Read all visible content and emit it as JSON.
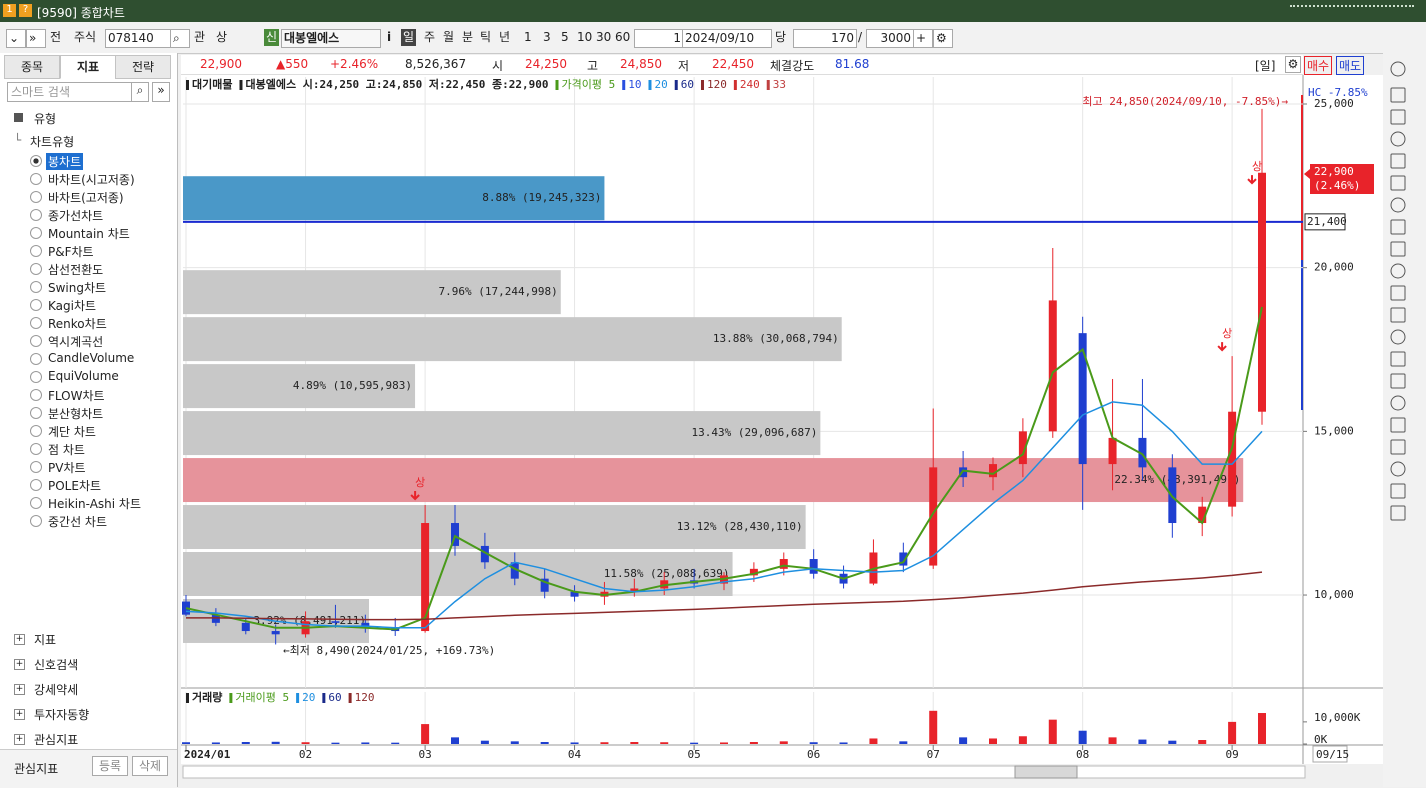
{
  "window": {
    "title": "[9590] 종합차트"
  },
  "toolbar": {
    "items": [
      "전",
      "주식",
      "078140",
      "관",
      "상",
      "신",
      "대봉엘에스",
      "i",
      "일",
      "주",
      "월",
      "분",
      "틱",
      "년",
      "1",
      "3",
      "5",
      "10",
      "30",
      "60",
      "1",
      "2024/09/10",
      "당",
      "170",
      "/",
      "3000"
    ]
  },
  "left_panel": {
    "tabs": [
      "종목",
      "지표",
      "전략"
    ],
    "search_placeholder": "스마트 검색",
    "group": "유형",
    "subgroup": "차트유형",
    "chart_types": [
      "봉차트",
      "바차트(시고저종)",
      "바차트(고저종)",
      "종가선차트",
      "Mountain 차트",
      "P&F차트",
      "삼선전환도",
      "Swing차트",
      "Kagi차트",
      "Renko차트",
      "역시계곡선",
      "CandleVolume",
      "EquiVolume",
      "FLOW차트",
      "분산형차트",
      "계단 차트",
      "점 차트",
      "PV차트",
      "POLE차트",
      "Heikin-Ashi 차트",
      "중간선 차트"
    ],
    "sections": [
      "지표",
      "신호검색",
      "강세약세",
      "투자자동향",
      "관심지표"
    ],
    "footer": {
      "label": "관심지표",
      "buttons": [
        "등록",
        "삭제"
      ]
    }
  },
  "quote": {
    "items": [
      "22,900",
      "▲550",
      "+2.46%",
      "8,526,367",
      "시",
      "24,250",
      "고",
      "24,850",
      "저",
      "22,450",
      "체결강도",
      "81.68"
    ]
  },
  "chart_controls": {
    "period": "[일]",
    "buttons": [
      "매수",
      "매도"
    ],
    "hc": "HC  -7.85%",
    "end_date": "09/15"
  },
  "chart_data": {
    "type": "candlestick",
    "header": [
      "대기매물",
      "대봉엘에스 시:24,250 고:24,850 저:22,450 종:22,900"
    ],
    "categories": [
      "2024/01",
      null,
      null,
      null,
      "02",
      null,
      null,
      null,
      "03",
      null,
      null,
      null,
      null,
      "04",
      null,
      null,
      null,
      "05",
      null,
      null,
      null,
      "06",
      null,
      null,
      null,
      "07",
      null,
      null,
      null,
      null,
      "08",
      null,
      null,
      null,
      null,
      "09",
      null
    ],
    "open": [
      9800,
      9400,
      9150,
      8900,
      8800,
      9200,
      9150,
      9000,
      8900,
      12200,
      11500,
      11000,
      10500,
      10100,
      9950,
      10100,
      10200,
      10450,
      10350,
      10600,
      10800,
      11100,
      10650,
      10350,
      11300,
      10900,
      13900,
      13600,
      14000,
      15000,
      18000,
      14000,
      14800,
      13900,
      12200,
      12700,
      15600
    ],
    "high": [
      10000,
      9600,
      9300,
      9100,
      9500,
      9700,
      9400,
      9300,
      12750,
      12750,
      11900,
      11300,
      10800,
      10300,
      10400,
      10500,
      10700,
      10800,
      10700,
      11000,
      11300,
      11400,
      10900,
      11700,
      11600,
      15700,
      14400,
      14200,
      15400,
      20600,
      18500,
      16600,
      16600,
      14300,
      13000,
      17300,
      24850
    ],
    "low": [
      9350,
      9050,
      8800,
      8490,
      8700,
      9000,
      8850,
      8750,
      8850,
      11200,
      10800,
      10300,
      9900,
      9800,
      9700,
      9950,
      10000,
      10200,
      10150,
      10400,
      10600,
      10500,
      10200,
      10300,
      10700,
      10800,
      13300,
      13200,
      13600,
      14800,
      12600,
      13200,
      13500,
      11750,
      11800,
      12400,
      15200
    ],
    "close": [
      9400,
      9150,
      8900,
      8800,
      9200,
      9150,
      9000,
      8900,
      12200,
      11500,
      11000,
      10500,
      10100,
      9950,
      10100,
      10200,
      10450,
      10350,
      10600,
      10800,
      11100,
      10650,
      10350,
      11300,
      10900,
      13900,
      13600,
      14000,
      15000,
      19000,
      14000,
      14800,
      13900,
      12200,
      12700,
      15600,
      22900
    ],
    "up_color": "#e8232a",
    "down_color": "#1f3fd0",
    "series": [
      {
        "name": "가격이평 5",
        "color": "#4a9a1a",
        "values": [
          9600,
          9400,
          9200,
          9000,
          9000,
          9050,
          9000,
          8950,
          9300,
          11800,
          11300,
          10800,
          10400,
          10100,
          10000,
          10100,
          10300,
          10400,
          10500,
          10650,
          10900,
          10800,
          10500,
          10800,
          11000,
          12500,
          13800,
          13700,
          14300,
          16800,
          17500,
          14800,
          14300,
          13000,
          12200,
          14500,
          18800
        ]
      },
      {
        "name": "20",
        "color": "#1e8fe0",
        "values": [
          9500,
          9450,
          9350,
          9200,
          9100,
          9050,
          9050,
          9000,
          9000,
          9800,
          10500,
          11000,
          10800,
          10500,
          10200,
          10100,
          10150,
          10250,
          10400,
          10500,
          10700,
          10800,
          10750,
          10700,
          10750,
          11200,
          12000,
          12800,
          13500,
          14500,
          15500,
          15900,
          15800,
          15000,
          14000,
          14000,
          15000
        ]
      },
      {
        "name": "120",
        "color": "#8b2a2a",
        "values": [
          9300,
          9300,
          9290,
          9280,
          9270,
          9260,
          9250,
          9250,
          9260,
          9300,
          9340,
          9380,
          9410,
          9440,
          9470,
          9500,
          9530,
          9560,
          9600,
          9640,
          9680,
          9720,
          9750,
          9780,
          9810,
          9860,
          9920,
          9990,
          10060,
          10150,
          10250,
          10330,
          10400,
          10460,
          10520,
          10600,
          10700
        ]
      }
    ],
    "legend_extra": [
      {
        "name": "10",
        "color": "#2a4fe0"
      },
      {
        "name": "60",
        "color": "#1a2a8a"
      },
      {
        "name": "240",
        "color": "#d03030"
      },
      {
        "name": "33",
        "color": "#c04040"
      }
    ],
    "ylim": [
      7160,
      25825
    ],
    "yticks": [
      {
        "value": 10000,
        "label": "10,000"
      },
      {
        "value": 15000,
        "label": "15,000"
      },
      {
        "value": 20000,
        "label": "20,000"
      },
      {
        "value": 25000,
        "label": "25,000"
      }
    ],
    "grid": true,
    "profile": {
      "bins": [
        8490,
        9925,
        11360,
        12795,
        14230,
        15665,
        17100,
        18535,
        19970,
        21405,
        22840
      ],
      "values": [
        3.92,
        11.58,
        13.12,
        22.34,
        13.43,
        4.89,
        13.88,
        7.96,
        0,
        8.88
      ],
      "value_labels": [
        "3.92% (8,491,211)",
        "11.58% (25,088,639)",
        "13.12% (28,430,110)",
        "22.34% (48,391,491)",
        "13.43% (29,096,687)",
        "4.89% (10,595,983)",
        "13.88% (30,068,794)",
        "7.96% (17,244,998)",
        null,
        "8.88% (19,245,323)"
      ],
      "colors": [
        "#c8c8c8",
        "#c8c8c8",
        "#c8c8c8",
        "#e6939b",
        "#c8c8c8",
        "#c8c8c8",
        "#c8c8c8",
        "#c8c8c8",
        "#c8c8c8",
        "#4a98c8"
      ],
      "xlim": [
        0,
        23.6
      ]
    },
    "hline": {
      "value": 21400,
      "label": "21,400",
      "color": "#1a2ad0"
    },
    "price_tag": [
      "22,900",
      "(2.46%)"
    ],
    "signals": [
      "상",
      "상",
      "상"
    ],
    "annotations": [
      "최고 24,850(2024/09/10, -7.85%)→",
      "←최저 8,490(2024/01/25, +169.73%)"
    ]
  },
  "volume_chart": {
    "type": "bar",
    "header": [
      "거래량"
    ],
    "legend": [
      {
        "name": "거래이평 5",
        "color": "#4a9a1a"
      },
      {
        "name": "20",
        "color": "#1e8fe0"
      },
      {
        "name": "60",
        "color": "#1a2a8a"
      },
      {
        "name": "120",
        "color": "#8b2a2a"
      }
    ],
    "values": [
      800,
      700,
      900,
      1000,
      800,
      600,
      700,
      600,
      9000,
      3000,
      1500,
      1200,
      900,
      700,
      800,
      900,
      800,
      600,
      700,
      900,
      1200,
      800,
      700,
      2500,
      1200,
      15000,
      3000,
      2500,
      3500,
      11000,
      6000,
      3000,
      2000,
      1500,
      1800,
      10000,
      14000
    ],
    "ylim": [
      0,
      23500
    ],
    "yticks": [
      {
        "value": 10000,
        "label": "10,000K"
      },
      {
        "value": 0,
        "label": "0K"
      }
    ]
  }
}
